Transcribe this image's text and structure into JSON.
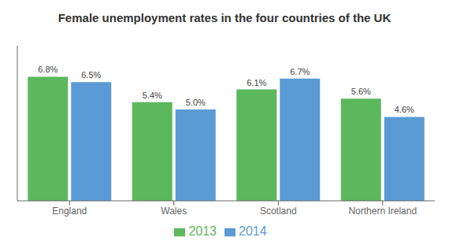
{
  "chart_data": {
    "type": "bar",
    "title": "Female unemployment rates in the four countries of the UK",
    "categories": [
      "England",
      "Wales",
      "Scotland",
      "Northern Ireland"
    ],
    "series": [
      {
        "name": "2013",
        "color": "#5cb85c",
        "values": [
          6.8,
          5.4,
          6.1,
          5.6
        ],
        "value_labels": [
          "6.8%",
          "5.4%",
          "6.1%",
          "5.6%"
        ]
      },
      {
        "name": "2014",
        "color": "#5b9bd5",
        "values": [
          6.5,
          5.0,
          6.7,
          4.6
        ],
        "value_labels": [
          "6.5%",
          "5.0%",
          "6.7%",
          "4.6%"
        ]
      }
    ],
    "ylim": [
      0,
      8.5
    ],
    "grid": false,
    "data_labels": true,
    "tick_labels": "x",
    "legend": "bottom"
  }
}
